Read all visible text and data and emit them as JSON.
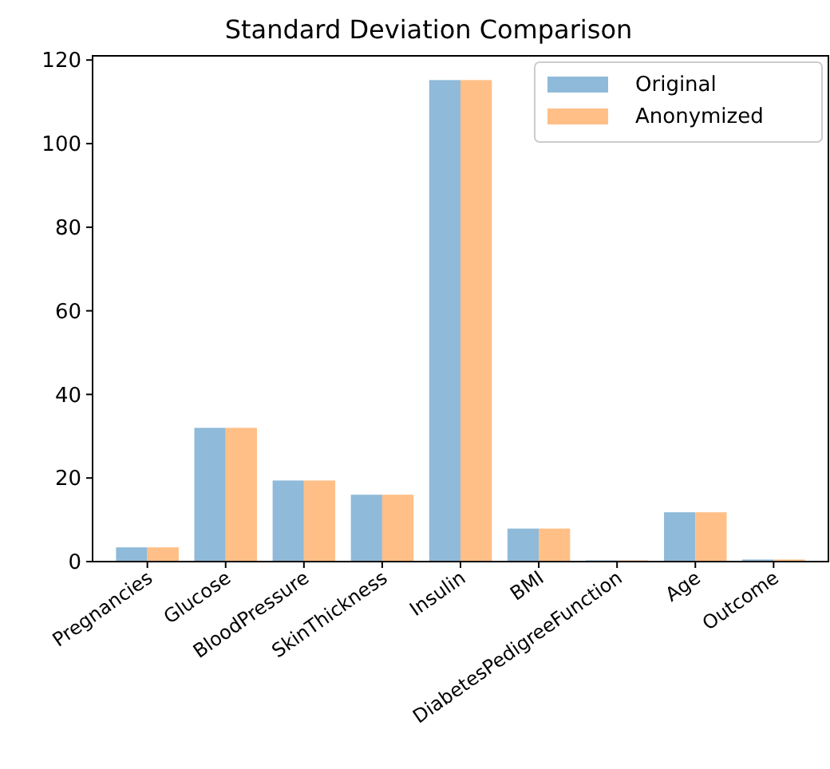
{
  "chart_data": {
    "type": "bar",
    "title": "Standard Deviation Comparison",
    "categories": [
      "Pregnancies",
      "Glucose",
      "BloodPressure",
      "SkinThickness",
      "Insulin",
      "BMI",
      "DiabetesPedigreeFunction",
      "Age",
      "Outcome"
    ],
    "series": [
      {
        "name": "Original",
        "color": "#8fbad9",
        "values": [
          3.4,
          32,
          19.4,
          16,
          115.2,
          7.9,
          0.3,
          11.8,
          0.5
        ]
      },
      {
        "name": "Anonymized",
        "color": "#ffbf86",
        "values": [
          3.4,
          32,
          19.4,
          16,
          115.2,
          7.9,
          0.3,
          11.8,
          0.5
        ]
      }
    ],
    "ylim": [
      0,
      121
    ],
    "yticks": [
      0,
      20,
      40,
      60,
      80,
      100,
      120
    ],
    "grid": false,
    "legend": "top right"
  }
}
